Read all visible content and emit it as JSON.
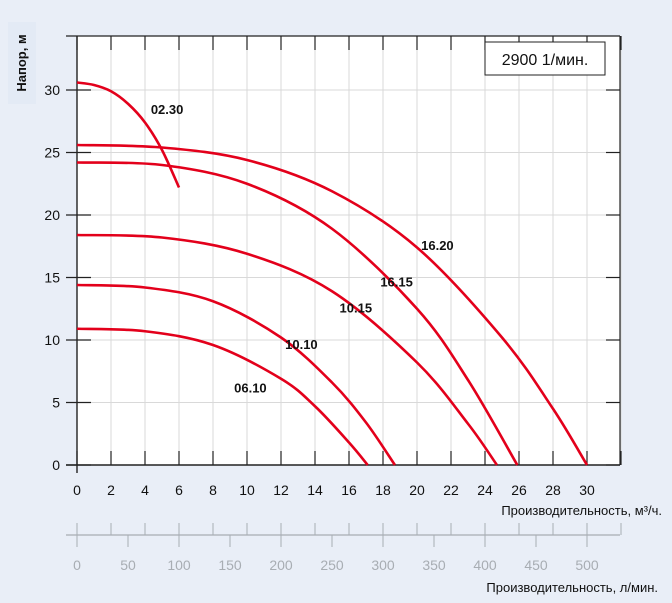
{
  "chart_data": {
    "type": "line",
    "title": "",
    "speed_label": "2900 1/мин.",
    "ylabel": "Напор, м",
    "xlabel": "Производительность, м³/ч.",
    "x2label": "Производительность, л/мин.",
    "xlim": [
      0,
      32
    ],
    "ylim": [
      0,
      34
    ],
    "x_ticks": [
      0,
      2,
      4,
      6,
      8,
      10,
      12,
      14,
      16,
      18,
      20,
      22,
      24,
      26,
      28,
      30
    ],
    "y_ticks": [
      0,
      5,
      10,
      15,
      20,
      25,
      30
    ],
    "x2_ticks": [
      0,
      50,
      100,
      150,
      200,
      250,
      300,
      350,
      400,
      450,
      500
    ],
    "x2_per_x": 16.6667,
    "grid": true,
    "colors": {
      "curve": "#e3001b",
      "background": "#e9eef7",
      "grid": "#d9d9d9",
      "secondary_axis": "#a8adb3"
    },
    "series": [
      {
        "name": "02.30",
        "label_at": [
          5.3,
          28.1
        ],
        "points": [
          [
            0,
            30.6
          ],
          [
            1,
            30.4
          ],
          [
            2,
            29.9
          ],
          [
            3,
            28.9
          ],
          [
            4,
            27.4
          ],
          [
            5,
            25.2
          ],
          [
            6,
            22.2
          ]
        ]
      },
      {
        "name": "16.20",
        "label_at": [
          21.2,
          17.2
        ],
        "points": [
          [
            0,
            25.6
          ],
          [
            5,
            25.4
          ],
          [
            10,
            24.4
          ],
          [
            15,
            21.9
          ],
          [
            20,
            17.4
          ],
          [
            25,
            10.2
          ],
          [
            28,
            4.5
          ],
          [
            30,
            0
          ]
        ]
      },
      {
        "name": "16.15",
        "label_at": [
          18.8,
          14.3
        ],
        "points": [
          [
            0,
            24.2
          ],
          [
            5,
            24.0
          ],
          [
            10,
            22.5
          ],
          [
            15,
            18.9
          ],
          [
            20,
            12.5
          ],
          [
            23,
            6.8
          ],
          [
            25.9,
            0
          ]
        ]
      },
      {
        "name": "10.15",
        "label_at": [
          16.4,
          12.2
        ],
        "points": [
          [
            0,
            18.4
          ],
          [
            5,
            18.2
          ],
          [
            10,
            16.9
          ],
          [
            15,
            13.9
          ],
          [
            20,
            8.2
          ],
          [
            23,
            3.3
          ],
          [
            24.7,
            0
          ]
        ]
      },
      {
        "name": "10.10",
        "label_at": [
          13.2,
          9.3
        ],
        "points": [
          [
            0,
            14.4
          ],
          [
            4,
            14.2
          ],
          [
            8,
            13.1
          ],
          [
            12,
            10.2
          ],
          [
            15,
            6.6
          ],
          [
            17,
            3.4
          ],
          [
            18.7,
            0
          ]
        ]
      },
      {
        "name": "06.10",
        "label_at": [
          10.2,
          5.8
        ],
        "points": [
          [
            0,
            10.9
          ],
          [
            4,
            10.7
          ],
          [
            8,
            9.6
          ],
          [
            12,
            6.9
          ],
          [
            14,
            4.7
          ],
          [
            16,
            1.8
          ],
          [
            17.1,
            0
          ]
        ]
      }
    ]
  }
}
